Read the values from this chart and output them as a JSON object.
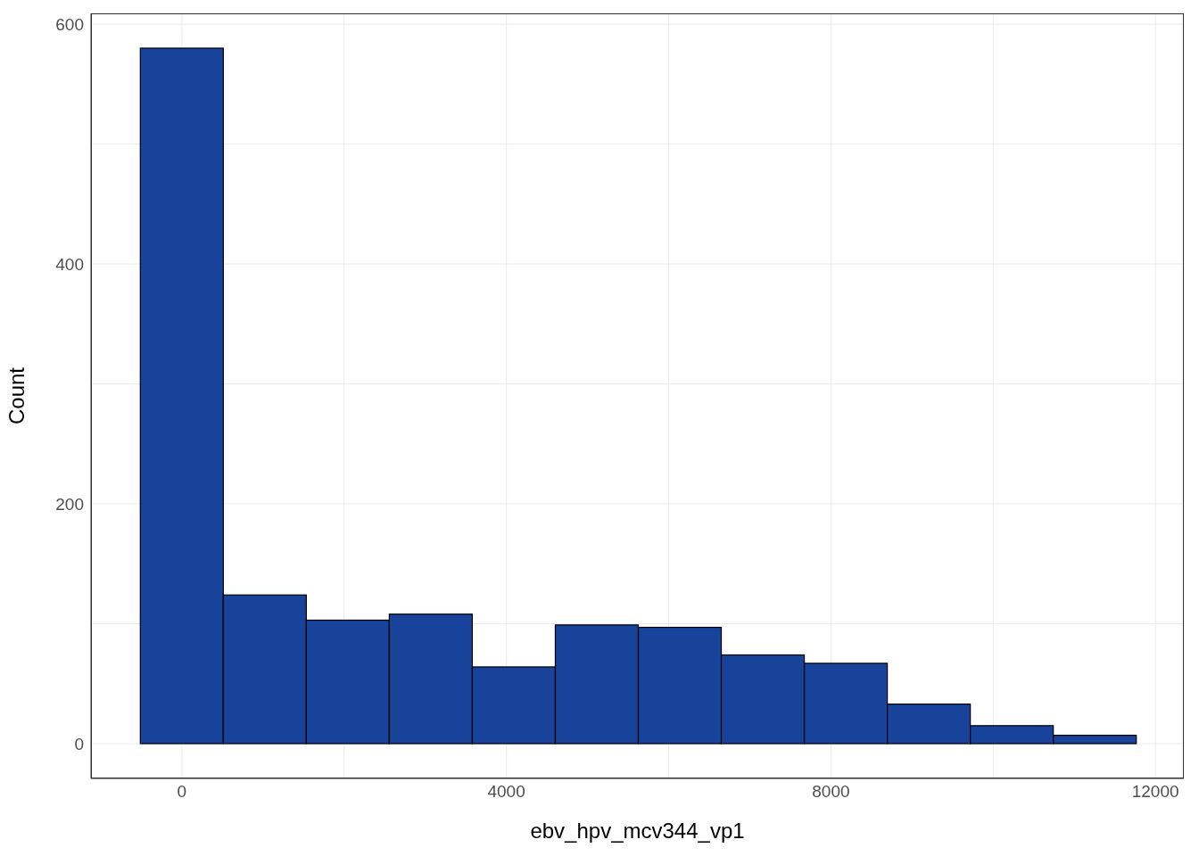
{
  "chart_data": {
    "type": "histogram",
    "xlabel": "ebv_hpv_mcv344_vp1",
    "ylabel": "Count",
    "bins": [
      -512,
      511,
      1534,
      2557,
      3580,
      4603,
      5626,
      6649,
      7672,
      8695,
      9718,
      10741,
      11764
    ],
    "values": [
      580,
      124,
      103,
      108,
      64,
      99,
      97,
      74,
      67,
      33,
      15,
      7
    ],
    "color": "#17439a",
    "xlim": [
      -1120,
      12350
    ],
    "ylim": [
      -29,
      609
    ],
    "xticks": [
      0,
      {
        "value": 2000,
        "label": null
      },
      4000,
      {
        "value": 6000,
        "label": null
      },
      8000,
      {
        "value": 10000,
        "label": null
      },
      12000
    ],
    "yticks": [
      0,
      {
        "value": 100,
        "label": null
      },
      200,
      {
        "value": 300,
        "label": null
      },
      400,
      {
        "value": 500,
        "label": null
      },
      600
    ],
    "grid": true,
    "legend": false
  }
}
